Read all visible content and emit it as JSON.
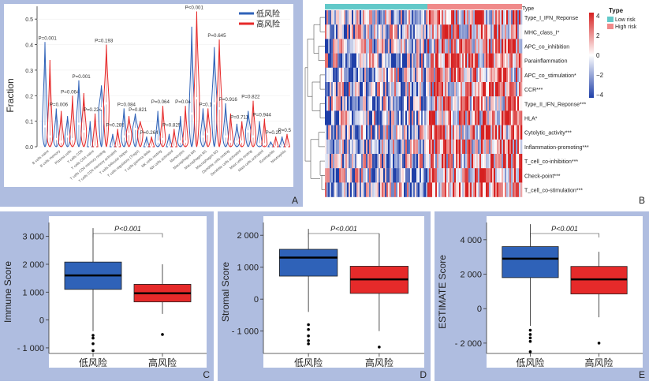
{
  "colors": {
    "frame": "#AFBDE0",
    "low": "#2F62B8",
    "high": "#E62A2A",
    "teal": "#62C9C9",
    "pink": "#F08A8A",
    "heat_blue": "#1F3FA8",
    "heat_red": "#D62020"
  },
  "panels": {
    "A": {
      "tag": "A"
    },
    "B": {
      "tag": "B"
    },
    "C": {
      "tag": "C"
    },
    "D": {
      "tag": "D"
    },
    "E": {
      "tag": "E"
    }
  },
  "chart_data": [
    {
      "id": "A",
      "type": "violin",
      "ylabel": "Fraction",
      "ylim": [
        0,
        0.55
      ],
      "yticks": [
        0.0,
        0.1,
        0.2,
        0.3,
        0.4,
        0.5
      ],
      "legend": {
        "position": "top-right",
        "items": [
          "低风险",
          "高风险"
        ]
      },
      "categories": [
        "B cells naive",
        "B cells memory",
        "Plasma cells",
        "T cells CD8",
        "T cells CD4 naive",
        "T cells CD4 memory resting",
        "T cells CD4 memory activated",
        "T cells follicular helper",
        "T cells regulatory (Tregs)",
        "T cells gamma delta",
        "NK cells resting",
        "NK cells activated",
        "Monocytes",
        "Macrophages M0",
        "Macrophages M1",
        "Macrophages M2",
        "Dendritic cells resting",
        "Dendritic cells activated",
        "Mast cells resting",
        "Mast cells activated",
        "Eosinophils",
        "Neutrophils"
      ],
      "pvalues": [
        "P=0.001",
        "P=0.006",
        "P=0.064",
        "P=0.001",
        "P=0.224",
        "P=0.193",
        "P=0.285",
        "P=0.084",
        "P=0.821",
        "P=0.264",
        "P=0.064",
        "P=0.825",
        "P=0.04",
        "P<0.001",
        "P=0.1",
        "P=0.645",
        "P=0.916",
        "P=0.711",
        "P=0.822",
        "P=0.944",
        "P=0.20",
        "P=0.5"
      ],
      "series": [
        {
          "name": "低风险",
          "max": [
            0.41,
            0.15,
            0.12,
            0.26,
            0.1,
            0.24,
            0.05,
            0.15,
            0.13,
            0.04,
            0.14,
            0.05,
            0.12,
            0.47,
            0.15,
            0.39,
            0.17,
            0.09,
            0.14,
            0.1,
            0.02,
            0.04
          ],
          "median": [
            0.08,
            0.03,
            0.04,
            0.09,
            0.0,
            0.15,
            0.0,
            0.04,
            0.07,
            0.0,
            0.02,
            0.0,
            0.02,
            0.13,
            0.04,
            0.17,
            0.04,
            0.02,
            0.06,
            0.01,
            0.0,
            0.0
          ]
        },
        {
          "name": "高风险",
          "max": [
            0.34,
            0.14,
            0.2,
            0.21,
            0.13,
            0.4,
            0.07,
            0.12,
            0.1,
            0.04,
            0.16,
            0.07,
            0.16,
            0.53,
            0.15,
            0.42,
            0.13,
            0.1,
            0.18,
            0.11,
            0.04,
            0.05
          ],
          "median": [
            0.04,
            0.02,
            0.03,
            0.06,
            0.0,
            0.17,
            0.0,
            0.05,
            0.06,
            0.0,
            0.03,
            0.0,
            0.02,
            0.19,
            0.05,
            0.15,
            0.02,
            0.02,
            0.04,
            0.01,
            0.0,
            0.0
          ]
        }
      ]
    },
    {
      "id": "B",
      "type": "heatmap",
      "legend_title": "Type",
      "legend_groups": [
        "Low risk",
        "High risk"
      ],
      "top_bar_label": "Type",
      "scale_ticks": [
        4,
        2,
        0,
        -2,
        -4
      ],
      "rows": [
        "Type_I_IFN_Reponse",
        "MHC_class_I*",
        "APC_co_inhibition",
        "Parainflammation",
        "APC_co_stimulation*",
        "CCR***",
        "Type_II_IFN_Reponse***",
        "HLA*",
        "Cytolytic_activity***",
        "Inflammation-promoting***",
        "T_cell_co-inhibition***",
        "Check-point***",
        "T_cell_co-stimulation***"
      ]
    },
    {
      "id": "C",
      "type": "box",
      "ylabel": "Immune Score",
      "ylim": [
        -1200,
        3500
      ],
      "yticks": [
        -1000,
        0,
        1000,
        2000,
        3000
      ],
      "ytick_labels": [
        "- 1 000",
        "0",
        "1 000",
        "2 000",
        "3 000"
      ],
      "categories": [
        "低风险",
        "高风险"
      ],
      "pvalue": "P<0.001",
      "boxes": [
        {
          "whisker_low": -400,
          "q1": 1100,
          "median": 1600,
          "q3": 2080,
          "whisker_high": 3300,
          "outliers": [
            -550,
            -650,
            -850,
            -1100
          ]
        },
        {
          "whisker_low": 220,
          "q1": 650,
          "median": 960,
          "q3": 1280,
          "whisker_high": 2000,
          "outliers": [
            -520
          ]
        }
      ]
    },
    {
      "id": "D",
      "type": "box",
      "ylabel": "Stromal Score",
      "ylim": [
        -1700,
        2400
      ],
      "yticks": [
        -1000,
        0,
        1000,
        2000
      ],
      "ytick_labels": [
        "- 1 000",
        "0",
        "1 000",
        "2 000"
      ],
      "categories": [
        "低风险",
        "高风险"
      ],
      "pvalue": "P<0.001",
      "boxes": [
        {
          "whisker_low": -400,
          "q1": 720,
          "median": 1300,
          "q3": 1560,
          "whisker_high": 2200,
          "outliers": [
            -800,
            -950,
            -1150,
            -1300,
            -1400
          ]
        },
        {
          "whisker_low": -1000,
          "q1": 180,
          "median": 620,
          "q3": 1030,
          "whisker_high": 2050,
          "outliers": [
            -1500
          ]
        }
      ]
    },
    {
      "id": "E",
      "type": "box",
      "ylabel": "ESTIMATE Score",
      "ylim": [
        -2600,
        5000
      ],
      "yticks": [
        -2000,
        0,
        2000,
        4000
      ],
      "ytick_labels": [
        "- 2 000",
        "0",
        "2 000",
        "4 000"
      ],
      "categories": [
        "低风险",
        "高风险"
      ],
      "pvalue": "P<0.001",
      "boxes": [
        {
          "whisker_low": -1000,
          "q1": 1800,
          "median": 2900,
          "q3": 3600,
          "whisker_high": 4900,
          "outliers": [
            -1250,
            -1500,
            -1700,
            -1900,
            -2500
          ]
        },
        {
          "whisker_low": -500,
          "q1": 850,
          "median": 1700,
          "q3": 2450,
          "whisker_high": 3300,
          "outliers": [
            -2000
          ]
        }
      ]
    }
  ]
}
